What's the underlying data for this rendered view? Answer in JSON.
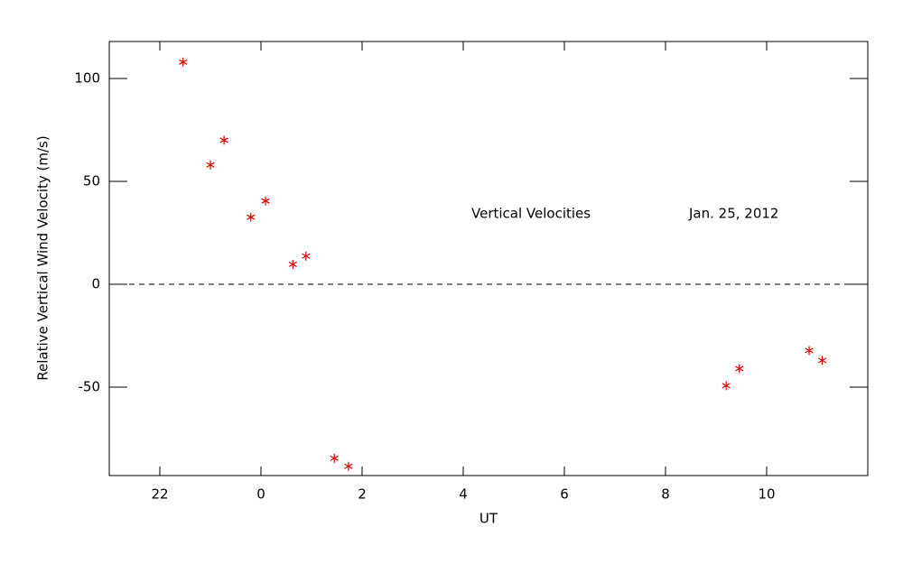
{
  "chart_data": {
    "type": "scatter",
    "xlabel": "UT",
    "ylabel": "Relative Vertical Wind Velocity (m/s)",
    "annotations": [
      "Vertical Velocities",
      "Jan. 25, 2012"
    ],
    "x": [
      -1.54,
      -1.0,
      -0.73,
      -0.2,
      0.09,
      0.63,
      0.89,
      1.45,
      1.73,
      9.2,
      9.46,
      10.84,
      11.1
    ],
    "series": [
      {
        "color": "#dd0000",
        "values": [
          108,
          58,
          70,
          32.6,
          40.5,
          9.7,
          13.7,
          -84.6,
          -88.5,
          -49.3,
          -41,
          -32.2,
          -37
        ]
      }
    ],
    "xlim": [
      -3,
      12
    ],
    "xticks": [
      {
        "value": -2,
        "label": "22"
      },
      0,
      2,
      4,
      6,
      8,
      10
    ],
    "ylim": [
      -93,
      118
    ],
    "yticks": [
      -50,
      0,
      50,
      100
    ],
    "hline": 0
  }
}
